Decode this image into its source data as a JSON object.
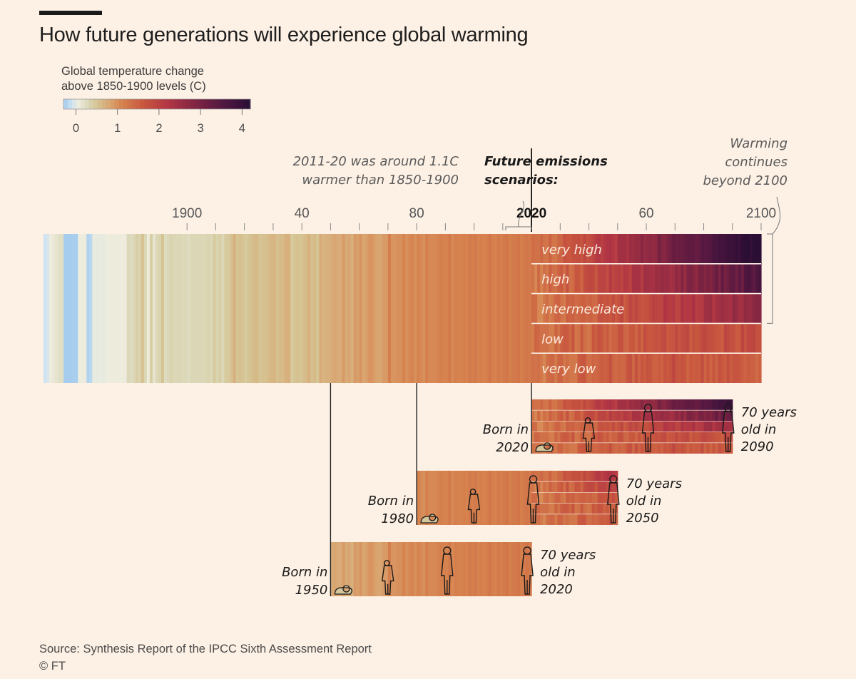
{
  "header": {
    "title": "How future generations will experience global warming"
  },
  "color_scale": {
    "title_lines": [
      "Global temperature change",
      "above 1850-1900 levels (C)"
    ],
    "ticks": [
      "0",
      "1",
      "2",
      "3",
      "4"
    ],
    "min": -0.3,
    "max": 4.2,
    "stops": [
      {
        "t": -0.3,
        "color": "#a6cdee"
      },
      {
        "t": -0.1,
        "color": "#cde2f2"
      },
      {
        "t": 0.05,
        "color": "#eeecdc"
      },
      {
        "t": 0.25,
        "color": "#dddcc0"
      },
      {
        "t": 0.5,
        "color": "#d5c595"
      },
      {
        "t": 0.8,
        "color": "#d9a672"
      },
      {
        "t": 1.1,
        "color": "#d6834f"
      },
      {
        "t": 1.6,
        "color": "#c9583f"
      },
      {
        "t": 2.2,
        "color": "#b23644"
      },
      {
        "t": 2.9,
        "color": "#7e2442"
      },
      {
        "t": 3.6,
        "color": "#4e1640"
      },
      {
        "t": 4.2,
        "color": "#2a0e34"
      }
    ]
  },
  "annotations": {
    "decade_note_lines": [
      "2011-20 was around 1.1C",
      "warmer than 1850-1900"
    ],
    "scenarios_heading_lines": [
      "Future emissions",
      "scenarios:"
    ],
    "beyond_lines": [
      "Warming",
      "continues",
      "beyond 2100"
    ]
  },
  "chart_data": {
    "type": "heatmap",
    "title": "How future generations will experience global warming",
    "x_axis": {
      "range": [
        1850,
        2100
      ],
      "tick_labels": [
        {
          "year": 1900,
          "label": "1900"
        },
        {
          "year": 1940,
          "label": "40"
        },
        {
          "year": 1980,
          "label": "80"
        },
        {
          "year": 2020,
          "label": "2020"
        },
        {
          "year": 2060,
          "label": "60"
        },
        {
          "year": 2100,
          "label": "2100"
        }
      ],
      "minor_tick_every_years": 10
    },
    "historical": {
      "years": [
        1850,
        2020
      ],
      "anomaly_c": [
        -0.1,
        -0.05,
        0.05,
        0.1,
        0.15,
        0.2,
        0.22,
        -0.3,
        -0.3,
        -0.3,
        -0.28,
        -0.29,
        0.05,
        0.05,
        0.04,
        -0.25,
        -0.2,
        0.03,
        0.02,
        0.03,
        0.02,
        0.03,
        0.05,
        0.06,
        0.05,
        0.04,
        0.06,
        0.05,
        0.04,
        0.3,
        0.25,
        0.3,
        0.4,
        0.35,
        0.55,
        0.32,
        0.06,
        0.4,
        0.15,
        0.3,
        0.35,
        0.5,
        0.25,
        0.3,
        0.35,
        0.3,
        0.3,
        0.32,
        0.28,
        0.3,
        0.25,
        0.3,
        0.32,
        0.3,
        0.31,
        0.3,
        0.32,
        0.35,
        0.3,
        0.45,
        0.35,
        0.4,
        0.3,
        0.45,
        0.45,
        0.55,
        0.7,
        0.5,
        0.55,
        0.5,
        0.45,
        0.5,
        0.55,
        0.6,
        0.6,
        0.5,
        0.55,
        0.55,
        0.6,
        0.65,
        0.65,
        0.55,
        0.6,
        0.6,
        0.7,
        0.7,
        0.45,
        0.5,
        0.55,
        0.5,
        0.55,
        0.6,
        0.7,
        0.55,
        0.6,
        0.5,
        0.75,
        0.65,
        0.7,
        0.7,
        0.75,
        0.8,
        0.75,
        0.75,
        0.9,
        0.75,
        0.8,
        0.7,
        0.9,
        0.85,
        0.95,
        0.8,
        0.85,
        0.95,
        0.95,
        0.85,
        0.8,
        0.8,
        0.9,
        0.9,
        1.15,
        0.95,
        0.95,
        1.0,
        1.0,
        1.1,
        1.0,
        1.05,
        1.1,
        1.0,
        1.1,
        1.05,
        1.0,
        1.15,
        1.05,
        1.05,
        1.05,
        1.1,
        1.15,
        1.1,
        1.1,
        1.2,
        1.05,
        1.15,
        1.1,
        1.1,
        1.15,
        1.1,
        1.2,
        1.15,
        1.2,
        1.1,
        1.15,
        1.1,
        1.15,
        1.25,
        1.15,
        1.1,
        1.2,
        1.15,
        1.2,
        1.25,
        1.15,
        1.2,
        1.2,
        1.25,
        1.15,
        1.2,
        1.25,
        1.2,
        1.3,
        1.2,
        1.3,
        1.25,
        1.3,
        1.25,
        1.35
      ]
    },
    "scenarios": [
      {
        "label": "very high",
        "warming_2100_c": 4.4
      },
      {
        "label": "high",
        "warming_2100_c": 3.6
      },
      {
        "label": "intermediate",
        "warming_2100_c": 2.7
      },
      {
        "label": "low",
        "warming_2100_c": 1.8
      },
      {
        "label": "very low",
        "warming_2100_c": 1.4
      }
    ],
    "generations": [
      {
        "born_lines": [
          "Born in",
          "2020"
        ],
        "born_year": 2020,
        "age_lines": [
          "70 years",
          "old in",
          "2090"
        ],
        "end_year": 2090
      },
      {
        "born_lines": [
          "Born in",
          "1980"
        ],
        "born_year": 1980,
        "age_lines": [
          "70 years",
          "old in",
          "2050"
        ],
        "end_year": 2050
      },
      {
        "born_lines": [
          "Born in",
          "1950"
        ],
        "born_year": 1950,
        "age_lines": [
          "70 years",
          "old in",
          "2020"
        ],
        "end_year": 2020
      }
    ]
  },
  "footer": {
    "source": "Source: Synthesis Report of the IPCC Sixth Assessment Report",
    "copyright": "© FT"
  }
}
